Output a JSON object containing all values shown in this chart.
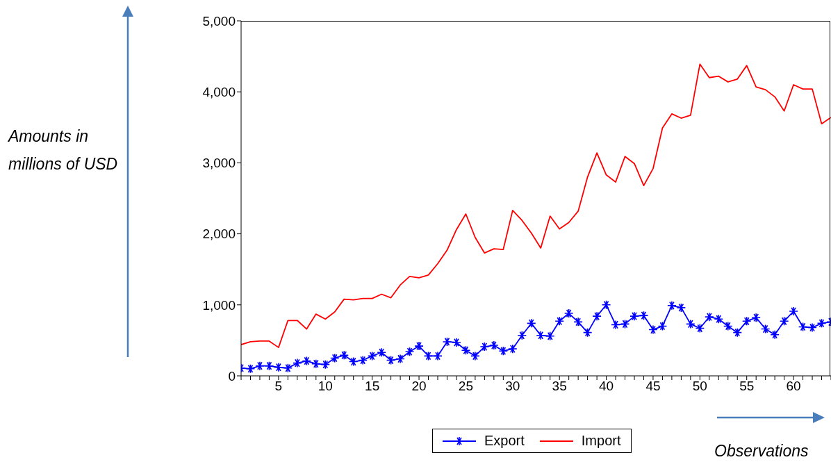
{
  "chart_data": {
    "type": "line",
    "xlabel": "Observations",
    "annotations": [
      "Amounts in millions of USD"
    ],
    "x": [
      1,
      2,
      3,
      4,
      5,
      6,
      7,
      8,
      9,
      10,
      11,
      12,
      13,
      14,
      15,
      16,
      17,
      18,
      19,
      20,
      21,
      22,
      23,
      24,
      25,
      26,
      27,
      28,
      29,
      30,
      31,
      32,
      33,
      34,
      35,
      36,
      37,
      38,
      39,
      40,
      41,
      42,
      43,
      44,
      45,
      46,
      47,
      48,
      49,
      50,
      51,
      52,
      53,
      54,
      55,
      56,
      57,
      58,
      59,
      60,
      61,
      62,
      63,
      64
    ],
    "series": [
      {
        "name": "Export",
        "color": "#0000ff",
        "marker": "cross",
        "values": [
          110,
          100,
          140,
          140,
          120,
          110,
          180,
          210,
          170,
          160,
          250,
          290,
          200,
          220,
          280,
          330,
          220,
          240,
          340,
          420,
          280,
          280,
          480,
          470,
          360,
          280,
          410,
          430,
          350,
          380,
          570,
          740,
          570,
          560,
          770,
          880,
          760,
          610,
          840,
          1000,
          720,
          730,
          840,
          850,
          650,
          700,
          990,
          960,
          730,
          670,
          830,
          800,
          700,
          610,
          770,
          820,
          660,
          580,
          770,
          910,
          690,
          680,
          740,
          760
        ]
      },
      {
        "name": "Import",
        "color": "#ff0000",
        "marker": "none",
        "values": [
          440,
          480,
          490,
          490,
          400,
          780,
          780,
          660,
          870,
          800,
          900,
          1080,
          1070,
          1090,
          1090,
          1150,
          1100,
          1280,
          1400,
          1380,
          1420,
          1580,
          1770,
          2060,
          2280,
          1950,
          1730,
          1790,
          1780,
          2330,
          2190,
          2010,
          1800,
          2250,
          2070,
          2160,
          2320,
          2800,
          3140,
          2830,
          2730,
          3090,
          2990,
          2680,
          2920,
          3490,
          3690,
          3630,
          3670,
          4390,
          4200,
          4220,
          4140,
          4180,
          4370,
          4070,
          4030,
          3930,
          3730,
          4100,
          4040,
          4040,
          3550,
          3640
        ]
      }
    ],
    "xlim": [
      1,
      64
    ],
    "xticks": [
      {
        "value": 1,
        "label": null
      },
      {
        "value": 2,
        "label": null
      },
      {
        "value": 3,
        "label": null
      },
      {
        "value": 4,
        "label": null
      },
      5,
      {
        "value": 6,
        "label": null
      },
      {
        "value": 7,
        "label": null
      },
      {
        "value": 8,
        "label": null
      },
      {
        "value": 9,
        "label": null
      },
      10,
      {
        "value": 11,
        "label": null
      },
      {
        "value": 12,
        "label": null
      },
      {
        "value": 13,
        "label": null
      },
      {
        "value": 14,
        "label": null
      },
      15,
      {
        "value": 16,
        "label": null
      },
      {
        "value": 17,
        "label": null
      },
      {
        "value": 18,
        "label": null
      },
      {
        "value": 19,
        "label": null
      },
      20,
      {
        "value": 21,
        "label": null
      },
      {
        "value": 22,
        "label": null
      },
      {
        "value": 23,
        "label": null
      },
      {
        "value": 24,
        "label": null
      },
      25,
      {
        "value": 26,
        "label": null
      },
      {
        "value": 27,
        "label": null
      },
      {
        "value": 28,
        "label": null
      },
      {
        "value": 29,
        "label": null
      },
      30,
      {
        "value": 31,
        "label": null
      },
      {
        "value": 32,
        "label": null
      },
      {
        "value": 33,
        "label": null
      },
      {
        "value": 34,
        "label": null
      },
      35,
      {
        "value": 36,
        "label": null
      },
      {
        "value": 37,
        "label": null
      },
      {
        "value": 38,
        "label": null
      },
      {
        "value": 39,
        "label": null
      },
      40,
      {
        "value": 41,
        "label": null
      },
      {
        "value": 42,
        "label": null
      },
      {
        "value": 43,
        "label": null
      },
      {
        "value": 44,
        "label": null
      },
      45,
      {
        "value": 46,
        "label": null
      },
      {
        "value": 47,
        "label": null
      },
      {
        "value": 48,
        "label": null
      },
      {
        "value": 49,
        "label": null
      },
      50,
      {
        "value": 51,
        "label": null
      },
      {
        "value": 52,
        "label": null
      },
      {
        "value": 53,
        "label": null
      },
      {
        "value": 54,
        "label": null
      },
      55,
      {
        "value": 56,
        "label": null
      },
      {
        "value": 57,
        "label": null
      },
      {
        "value": 58,
        "label": null
      },
      {
        "value": 59,
        "label": null
      },
      60,
      {
        "value": 61,
        "label": null
      },
      {
        "value": 62,
        "label": null
      },
      {
        "value": 63,
        "label": null
      },
      {
        "value": 64,
        "label": null
      }
    ],
    "ylim": [
      0,
      5000
    ],
    "yticks": [
      0,
      {
        "value": 1000,
        "label": "1,000"
      },
      {
        "value": 2000,
        "label": "2,000"
      },
      {
        "value": 3000,
        "label": "3,000"
      },
      {
        "value": 4000,
        "label": "4,000"
      },
      {
        "value": 5000,
        "label": "5,000"
      }
    ],
    "grid": false,
    "legend": "bottom",
    "line_style": "solid"
  }
}
